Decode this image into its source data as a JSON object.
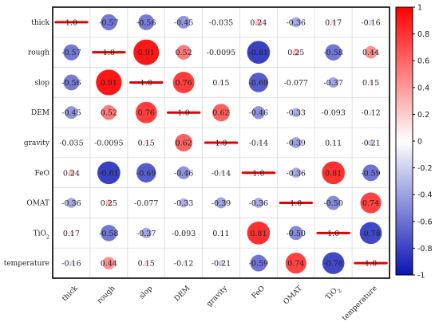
{
  "chart_data": {
    "type": "heatmap",
    "labels": [
      "thick",
      "rough",
      "slop",
      "DEM",
      "gravity",
      "FeO",
      "OMAT",
      "TiO2",
      "temperature"
    ],
    "values": [
      [
        1.0,
        -0.57,
        -0.56,
        -0.45,
        -0.035,
        0.24,
        -0.36,
        0.17,
        -0.16
      ],
      [
        -0.57,
        1.0,
        0.91,
        0.52,
        -0.0095,
        -0.81,
        0.25,
        -0.58,
        0.44
      ],
      [
        -0.56,
        0.91,
        1.0,
        0.76,
        0.15,
        -0.69,
        -0.077,
        -0.37,
        0.15
      ],
      [
        -0.45,
        0.52,
        0.76,
        1.0,
        0.62,
        -0.46,
        -0.33,
        -0.093,
        -0.12
      ],
      [
        -0.035,
        -0.0095,
        0.15,
        0.62,
        1.0,
        -0.14,
        -0.39,
        0.11,
        -0.21
      ],
      [
        0.24,
        -0.81,
        -0.69,
        -0.46,
        -0.14,
        1.0,
        -0.36,
        0.81,
        -0.59
      ],
      [
        -0.36,
        0.25,
        -0.077,
        -0.33,
        -0.39,
        -0.36,
        1.0,
        -0.5,
        0.74
      ],
      [
        0.17,
        -0.58,
        -0.37,
        -0.093,
        0.11,
        0.81,
        -0.5,
        1.0,
        -0.78
      ],
      [
        -0.16,
        0.44,
        0.15,
        -0.12,
        -0.21,
        -0.59,
        0.74,
        -0.78,
        1.0
      ]
    ],
    "value_text": [
      [
        "1.0",
        "-0.57",
        "-0.56",
        "-0.45",
        "-0.035",
        "0.24",
        "-0.36",
        "0.17",
        "-0.16"
      ],
      [
        "-0.57",
        "1.0",
        "0.91",
        "0.52",
        "-0.0095",
        "-0.81",
        "0.25",
        "-0.58",
        "0.44"
      ],
      [
        "-0.56",
        "0.91",
        "1.0",
        "0.76",
        "0.15",
        "-0.69",
        "-0.077",
        "-0.37",
        "0.15"
      ],
      [
        "-0.45",
        "0.52",
        "0.76",
        "1.0",
        "0.62",
        "-0.46",
        "-0.33",
        "-0.093",
        "-0.12"
      ],
      [
        "-0.035",
        "-0.0095",
        "0.15",
        "0.62",
        "1.0",
        "-0.14",
        "-0.39",
        "0.11",
        "-0.21"
      ],
      [
        "0.24",
        "-0.81",
        "-0.69",
        "-0.46",
        "-0.14",
        "1.0",
        "-0.36",
        "0.81",
        "-0.59"
      ],
      [
        "-0.36",
        "0.25",
        "-0.077",
        "-0.33",
        "-0.39",
        "-0.36",
        "1.0",
        "-0.50",
        "0.74"
      ],
      [
        "0.17",
        "-0.58",
        "-0.37",
        "-0.093",
        "0.11",
        "0.81",
        "-0.50",
        "1.0",
        "-0.78"
      ],
      [
        "-0.16",
        "0.44",
        "0.15",
        "-0.12",
        "-0.21",
        "-0.59",
        "0.74",
        "-0.78",
        "1.0"
      ]
    ],
    "colorbar": {
      "min": -1,
      "max": 1,
      "ticks": [
        "1",
        "0.8",
        "0.6",
        "0.4",
        "0.2",
        "0",
        "-0.2",
        "-0.4",
        "-0.6",
        "-0.8",
        "-1"
      ],
      "colors": {
        "negative": "#0a14b4",
        "zero": "#ffffff",
        "positive": "#ff0000"
      }
    },
    "diagonal_mark_color": "#e00000",
    "grid": true
  }
}
